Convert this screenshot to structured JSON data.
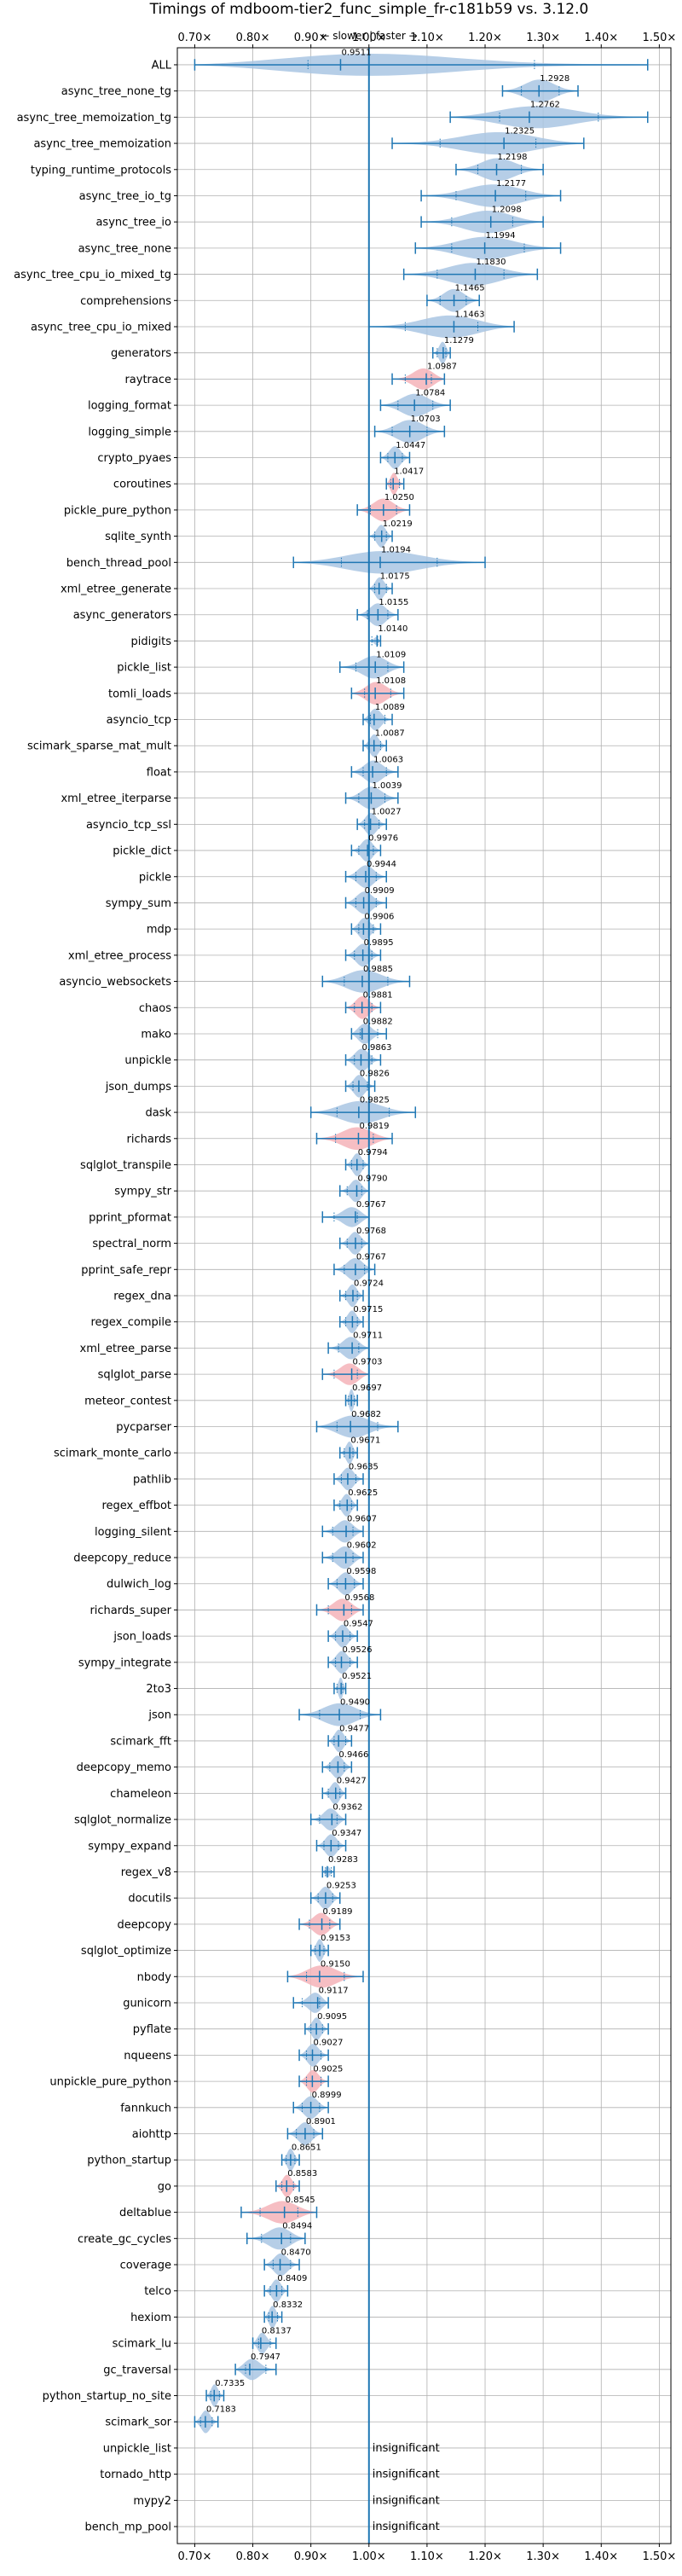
{
  "chart_data": {
    "type": "violin",
    "title": "Timings of mdboom-tier2_func_simple_fr-c181b59 vs. 3.12.0",
    "subtitle": "← slower | faster →",
    "x_ticks": [
      "0.70×",
      "0.80×",
      "0.90×",
      "1.00×",
      "1.10×",
      "1.20×",
      "1.30×",
      "1.40×",
      "1.50×"
    ],
    "x_tick_values": [
      0.7,
      0.8,
      0.9,
      1.0,
      1.1,
      1.2,
      1.3,
      1.4,
      1.5
    ],
    "xlim": [
      0.67,
      1.52
    ],
    "reference_line": 1.0,
    "grid": true,
    "colors": {
      "normal": "#a9c6e3",
      "highlight": "#f4b3b8",
      "line": "#1f77b4",
      "grid": "#b0b0b0"
    },
    "insignificant_label": "insignificant",
    "benchmarks": [
      {
        "name": "ALL",
        "value": 0.9511,
        "label": "0.9511",
        "min": 0.7,
        "max": 1.48,
        "hl": false,
        "w": 0.45
      },
      {
        "name": "async_tree_none_tg",
        "value": 1.2928,
        "label": "1.2928",
        "min": 1.23,
        "max": 1.36,
        "hl": false
      },
      {
        "name": "async_tree_memoization_tg",
        "value": 1.2762,
        "label": "1.2762",
        "min": 1.14,
        "max": 1.48,
        "hl": false
      },
      {
        "name": "async_tree_memoization",
        "value": 1.2325,
        "label": "1.2325",
        "min": 1.04,
        "max": 1.37,
        "hl": false
      },
      {
        "name": "typing_runtime_protocols",
        "value": 1.2198,
        "label": "1.2198",
        "min": 1.15,
        "max": 1.3,
        "hl": false
      },
      {
        "name": "async_tree_io_tg",
        "value": 1.2177,
        "label": "1.2177",
        "min": 1.09,
        "max": 1.33,
        "hl": false
      },
      {
        "name": "async_tree_io",
        "value": 1.2098,
        "label": "1.2098",
        "min": 1.09,
        "max": 1.3,
        "hl": false
      },
      {
        "name": "async_tree_none",
        "value": 1.1994,
        "label": "1.1994",
        "min": 1.08,
        "max": 1.33,
        "hl": false
      },
      {
        "name": "async_tree_cpu_io_mixed_tg",
        "value": 1.183,
        "label": "1.1830",
        "min": 1.06,
        "max": 1.29,
        "hl": false
      },
      {
        "name": "comprehensions",
        "value": 1.1465,
        "label": "1.1465",
        "min": 1.1,
        "max": 1.19,
        "hl": false
      },
      {
        "name": "async_tree_cpu_io_mixed",
        "value": 1.1463,
        "label": "1.1463",
        "min": 1.0,
        "max": 1.25,
        "hl": false
      },
      {
        "name": "generators",
        "value": 1.1279,
        "label": "1.1279",
        "min": 1.11,
        "max": 1.14,
        "hl": false
      },
      {
        "name": "raytrace",
        "value": 1.0987,
        "label": "1.0987",
        "min": 1.04,
        "max": 1.13,
        "hl": true
      },
      {
        "name": "logging_format",
        "value": 1.0784,
        "label": "1.0784",
        "min": 1.02,
        "max": 1.14,
        "hl": false
      },
      {
        "name": "logging_simple",
        "value": 1.0703,
        "label": "1.0703",
        "min": 1.01,
        "max": 1.13,
        "hl": false
      },
      {
        "name": "crypto_pyaes",
        "value": 1.0447,
        "label": "1.0447",
        "min": 1.02,
        "max": 1.07,
        "hl": false
      },
      {
        "name": "coroutines",
        "value": 1.0417,
        "label": "1.0417",
        "min": 1.03,
        "max": 1.06,
        "hl": true
      },
      {
        "name": "pickle_pure_python",
        "value": 1.025,
        "label": "1.0250",
        "min": 0.98,
        "max": 1.07,
        "hl": true
      },
      {
        "name": "sqlite_synth",
        "value": 1.0219,
        "label": "1.0219",
        "min": 1.0,
        "max": 1.04,
        "hl": false
      },
      {
        "name": "bench_thread_pool",
        "value": 1.0194,
        "label": "1.0194",
        "min": 0.87,
        "max": 1.2,
        "hl": false
      },
      {
        "name": "xml_etree_generate",
        "value": 1.0175,
        "label": "1.0175",
        "min": 1.0,
        "max": 1.04,
        "hl": false
      },
      {
        "name": "async_generators",
        "value": 1.0155,
        "label": "1.0155",
        "min": 0.98,
        "max": 1.05,
        "hl": false
      },
      {
        "name": "pidigits",
        "value": 1.014,
        "label": "1.0140",
        "min": 1.0,
        "max": 1.02,
        "hl": false,
        "w": 0.15
      },
      {
        "name": "pickle_list",
        "value": 1.0109,
        "label": "1.0109",
        "min": 0.95,
        "max": 1.06,
        "hl": false
      },
      {
        "name": "tomli_loads",
        "value": 1.0108,
        "label": "1.0108",
        "min": 0.97,
        "max": 1.06,
        "hl": true
      },
      {
        "name": "asyncio_tcp",
        "value": 1.0089,
        "label": "1.0089",
        "min": 0.99,
        "max": 1.04,
        "hl": false
      },
      {
        "name": "scimark_sparse_mat_mult",
        "value": 1.0087,
        "label": "1.0087",
        "min": 0.99,
        "max": 1.03,
        "hl": false
      },
      {
        "name": "float",
        "value": 1.0063,
        "label": "1.0063",
        "min": 0.97,
        "max": 1.05,
        "hl": false
      },
      {
        "name": "xml_etree_iterparse",
        "value": 1.0039,
        "label": "1.0039",
        "min": 0.96,
        "max": 1.05,
        "hl": false
      },
      {
        "name": "asyncio_tcp_ssl",
        "value": 1.0027,
        "label": "1.0027",
        "min": 0.98,
        "max": 1.03,
        "hl": false
      },
      {
        "name": "pickle_dict",
        "value": 0.9976,
        "label": "0.9976",
        "min": 0.97,
        "max": 1.02,
        "hl": false
      },
      {
        "name": "pickle",
        "value": 0.9944,
        "label": "0.9944",
        "min": 0.96,
        "max": 1.03,
        "hl": false
      },
      {
        "name": "sympy_sum",
        "value": 0.9909,
        "label": "0.9909",
        "min": 0.96,
        "max": 1.03,
        "hl": false
      },
      {
        "name": "mdp",
        "value": 0.9906,
        "label": "0.9906",
        "min": 0.97,
        "max": 1.02,
        "hl": false
      },
      {
        "name": "xml_etree_process",
        "value": 0.9895,
        "label": "0.9895",
        "min": 0.96,
        "max": 1.02,
        "hl": false
      },
      {
        "name": "asyncio_websockets",
        "value": 0.9885,
        "label": "0.9885",
        "min": 0.92,
        "max": 1.07,
        "hl": false
      },
      {
        "name": "chaos",
        "value": 0.9881,
        "label": "0.9881",
        "min": 0.96,
        "max": 1.02,
        "hl": true
      },
      {
        "name": "mako",
        "value": 0.9882,
        "label": "0.9882",
        "min": 0.97,
        "max": 1.03,
        "hl": false
      },
      {
        "name": "unpickle",
        "value": 0.9863,
        "label": "0.9863",
        "min": 0.96,
        "max": 1.02,
        "hl": false
      },
      {
        "name": "json_dumps",
        "value": 0.9826,
        "label": "0.9826",
        "min": 0.96,
        "max": 1.01,
        "hl": false
      },
      {
        "name": "dask",
        "value": 0.9825,
        "label": "0.9825",
        "min": 0.9,
        "max": 1.08,
        "hl": false
      },
      {
        "name": "richards",
        "value": 0.9819,
        "label": "0.9819",
        "min": 0.91,
        "max": 1.04,
        "hl": true
      },
      {
        "name": "sqlglot_transpile",
        "value": 0.9794,
        "label": "0.9794",
        "min": 0.96,
        "max": 1.0,
        "hl": false
      },
      {
        "name": "sympy_str",
        "value": 0.979,
        "label": "0.9790",
        "min": 0.95,
        "max": 1.0,
        "hl": false
      },
      {
        "name": "pprint_pformat",
        "value": 0.9767,
        "label": "0.9767",
        "min": 0.92,
        "max": 1.0,
        "hl": false
      },
      {
        "name": "spectral_norm",
        "value": 0.9768,
        "label": "0.9768",
        "min": 0.95,
        "max": 1.0,
        "hl": false
      },
      {
        "name": "pprint_safe_repr",
        "value": 0.9767,
        "label": "0.9767",
        "min": 0.94,
        "max": 1.01,
        "hl": false
      },
      {
        "name": "regex_dna",
        "value": 0.9724,
        "label": "0.9724",
        "min": 0.95,
        "max": 0.99,
        "hl": false
      },
      {
        "name": "regex_compile",
        "value": 0.9715,
        "label": "0.9715",
        "min": 0.95,
        "max": 0.99,
        "hl": false
      },
      {
        "name": "xml_etree_parse",
        "value": 0.9711,
        "label": "0.9711",
        "min": 0.93,
        "max": 1.0,
        "hl": false
      },
      {
        "name": "sqlglot_parse",
        "value": 0.9703,
        "label": "0.9703",
        "min": 0.92,
        "max": 1.0,
        "hl": true
      },
      {
        "name": "meteor_contest",
        "value": 0.9697,
        "label": "0.9697",
        "min": 0.96,
        "max": 0.98,
        "hl": false
      },
      {
        "name": "pycparser",
        "value": 0.9682,
        "label": "0.9682",
        "min": 0.91,
        "max": 1.05,
        "hl": false
      },
      {
        "name": "scimark_monte_carlo",
        "value": 0.9671,
        "label": "0.9671",
        "min": 0.95,
        "max": 0.98,
        "hl": false
      },
      {
        "name": "pathlib",
        "value": 0.9635,
        "label": "0.9635",
        "min": 0.94,
        "max": 0.99,
        "hl": false
      },
      {
        "name": "regex_effbot",
        "value": 0.9625,
        "label": "0.9625",
        "min": 0.94,
        "max": 0.98,
        "hl": false
      },
      {
        "name": "logging_silent",
        "value": 0.9607,
        "label": "0.9607",
        "min": 0.92,
        "max": 0.99,
        "hl": false
      },
      {
        "name": "deepcopy_reduce",
        "value": 0.9602,
        "label": "0.9602",
        "min": 0.92,
        "max": 0.99,
        "hl": false
      },
      {
        "name": "dulwich_log",
        "value": 0.9598,
        "label": "0.9598",
        "min": 0.93,
        "max": 0.99,
        "hl": false
      },
      {
        "name": "richards_super",
        "value": 0.9568,
        "label": "0.9568",
        "min": 0.91,
        "max": 0.99,
        "hl": true
      },
      {
        "name": "json_loads",
        "value": 0.9547,
        "label": "0.9547",
        "min": 0.93,
        "max": 0.98,
        "hl": false
      },
      {
        "name": "sympy_integrate",
        "value": 0.9526,
        "label": "0.9526",
        "min": 0.93,
        "max": 0.98,
        "hl": false
      },
      {
        "name": "2to3",
        "value": 0.9521,
        "label": "0.9521",
        "min": 0.94,
        "max": 0.96,
        "hl": false
      },
      {
        "name": "json",
        "value": 0.949,
        "label": "0.9490",
        "min": 0.88,
        "max": 1.02,
        "hl": false
      },
      {
        "name": "scimark_fft",
        "value": 0.9477,
        "label": "0.9477",
        "min": 0.93,
        "max": 0.97,
        "hl": false
      },
      {
        "name": "deepcopy_memo",
        "value": 0.9466,
        "label": "0.9466",
        "min": 0.92,
        "max": 0.97,
        "hl": false
      },
      {
        "name": "chameleon",
        "value": 0.9427,
        "label": "0.9427",
        "min": 0.92,
        "max": 0.96,
        "hl": false
      },
      {
        "name": "sqlglot_normalize",
        "value": 0.9362,
        "label": "0.9362",
        "min": 0.9,
        "max": 0.96,
        "hl": false
      },
      {
        "name": "sympy_expand",
        "value": 0.9347,
        "label": "0.9347",
        "min": 0.91,
        "max": 0.96,
        "hl": false
      },
      {
        "name": "regex_v8",
        "value": 0.9283,
        "label": "0.9283",
        "min": 0.92,
        "max": 0.94,
        "hl": false,
        "w": 0.2
      },
      {
        "name": "docutils",
        "value": 0.9253,
        "label": "0.9253",
        "min": 0.9,
        "max": 0.95,
        "hl": false
      },
      {
        "name": "deepcopy",
        "value": 0.9189,
        "label": "0.9189",
        "min": 0.88,
        "max": 0.95,
        "hl": true
      },
      {
        "name": "sqlglot_optimize",
        "value": 0.9153,
        "label": "0.9153",
        "min": 0.9,
        "max": 0.93,
        "hl": false
      },
      {
        "name": "nbody",
        "value": 0.915,
        "label": "0.9150",
        "min": 0.86,
        "max": 0.99,
        "hl": true
      },
      {
        "name": "gunicorn",
        "value": 0.9117,
        "label": "0.9117",
        "min": 0.87,
        "max": 0.93,
        "hl": false
      },
      {
        "name": "pyflate",
        "value": 0.9095,
        "label": "0.9095",
        "min": 0.89,
        "max": 0.93,
        "hl": false
      },
      {
        "name": "nqueens",
        "value": 0.9027,
        "label": "0.9027",
        "min": 0.88,
        "max": 0.93,
        "hl": false
      },
      {
        "name": "unpickle_pure_python",
        "value": 0.9025,
        "label": "0.9025",
        "min": 0.88,
        "max": 0.93,
        "hl": true
      },
      {
        "name": "fannkuch",
        "value": 0.8999,
        "label": "0.8999",
        "min": 0.87,
        "max": 0.93,
        "hl": false
      },
      {
        "name": "aiohttp",
        "value": 0.8901,
        "label": "0.8901",
        "min": 0.86,
        "max": 0.92,
        "hl": false
      },
      {
        "name": "python_startup",
        "value": 0.8651,
        "label": "0.8651",
        "min": 0.85,
        "max": 0.88,
        "hl": false
      },
      {
        "name": "go",
        "value": 0.8583,
        "label": "0.8583",
        "min": 0.84,
        "max": 0.88,
        "hl": true
      },
      {
        "name": "deltablue",
        "value": 0.8545,
        "label": "0.8545",
        "min": 0.78,
        "max": 0.91,
        "hl": true
      },
      {
        "name": "create_gc_cycles",
        "value": 0.8494,
        "label": "0.8494",
        "min": 0.79,
        "max": 0.89,
        "hl": false
      },
      {
        "name": "coverage",
        "value": 0.847,
        "label": "0.8470",
        "min": 0.82,
        "max": 0.88,
        "hl": false
      },
      {
        "name": "telco",
        "value": 0.8409,
        "label": "0.8409",
        "min": 0.82,
        "max": 0.86,
        "hl": false
      },
      {
        "name": "hexiom",
        "value": 0.8332,
        "label": "0.8332",
        "min": 0.82,
        "max": 0.85,
        "hl": false
      },
      {
        "name": "scimark_lu",
        "value": 0.8137,
        "label": "0.8137",
        "min": 0.8,
        "max": 0.84,
        "hl": false
      },
      {
        "name": "gc_traversal",
        "value": 0.7947,
        "label": "0.7947",
        "min": 0.77,
        "max": 0.84,
        "hl": false
      },
      {
        "name": "python_startup_no_site",
        "value": 0.7335,
        "label": "0.7335",
        "min": 0.72,
        "max": 0.75,
        "hl": false
      },
      {
        "name": "scimark_sor",
        "value": 0.7183,
        "label": "0.7183",
        "min": 0.7,
        "max": 0.74,
        "hl": false
      },
      {
        "name": "unpickle_list",
        "value": null,
        "label": "",
        "insignificant": true
      },
      {
        "name": "tornado_http",
        "value": null,
        "label": "",
        "insignificant": true
      },
      {
        "name": "mypy2",
        "value": null,
        "label": "",
        "insignificant": true
      },
      {
        "name": "bench_mp_pool",
        "value": null,
        "label": "",
        "insignificant": true
      }
    ]
  }
}
